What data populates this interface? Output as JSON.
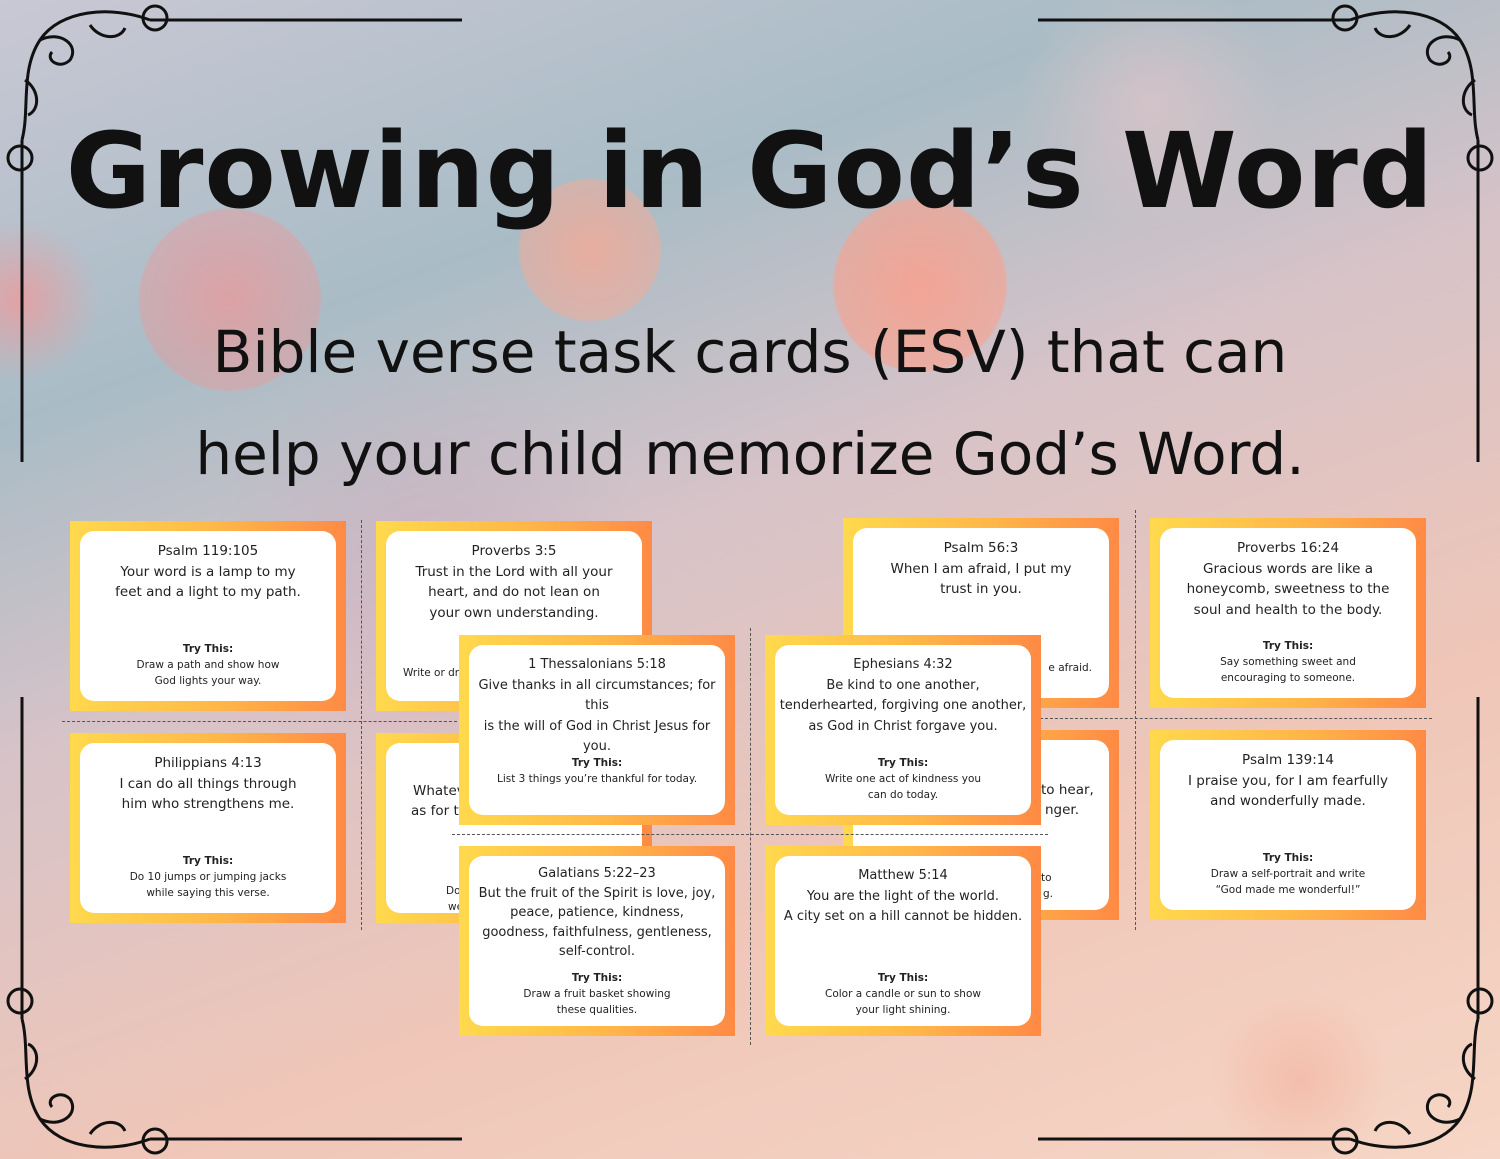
{
  "title": "Growing in God’s Word",
  "subtitle_line1": "Bible verse task cards (ESV) that can",
  "subtitle_line2": "help your child memorize God’s Word.",
  "accent_colors": {
    "card_gradient_start": "#ffd94d",
    "card_gradient_end": "#ff8a45"
  },
  "try_label": "Try This:",
  "cards": [
    {
      "ref": "Psalm 119:105",
      "verse": [
        "Your word is a lamp to my",
        "feet and a light to my path."
      ],
      "task": [
        "Draw a path and show how",
        "God lights your way."
      ]
    },
    {
      "ref": "Proverbs 3:5",
      "verse": [
        "Trust in the Lord with all your",
        "heart, and do not lean on",
        "your own understanding."
      ],
      "task_fragment": "Write or dra"
    },
    {
      "ref": "1 Thessalonians 5:18",
      "verse": [
        "Give thanks in all circumstances; for this",
        "is the will of God in Christ Jesus for you."
      ],
      "task": [
        "List 3 things you’re thankful for today."
      ]
    },
    {
      "ref": "Psalm 56:3",
      "verse": [
        "When I am afraid, I put my",
        "trust in you."
      ],
      "task_fragment": "e afraid."
    },
    {
      "ref": "Ephesians 4:32",
      "verse": [
        "Be kind to one another,",
        "tenderhearted, forgiving one another,",
        "as God in Christ forgave you."
      ],
      "task": [
        "Write one act of kindness you",
        "can do today."
      ]
    },
    {
      "ref": "Proverbs 16:24",
      "verse": [
        "Gracious words are like a",
        "honeycomb, sweetness to the",
        "soul and health to the body."
      ],
      "task": [
        "Say something sweet and",
        "encouraging to someone."
      ]
    },
    {
      "ref": "Philippians 4:13",
      "verse": [
        "I can do all things through",
        "him who strengthens me."
      ],
      "task": [
        "Do 10 jumps or jumping jacks",
        "while saying this verse."
      ]
    },
    {
      "fragments": [
        "Whatev",
        "as for th"
      ],
      "task_fragments": [
        "Do",
        "we"
      ]
    },
    {
      "fragments": [
        "to hear,",
        "nger."
      ],
      "task_fragments": [
        "to",
        "g."
      ]
    },
    {
      "ref": "Psalm 139:14",
      "verse": [
        "I praise you, for I am fearfully",
        "and wonderfully made."
      ],
      "task": [
        "Draw a self-portrait and write",
        "“God made me wonderful!”"
      ]
    },
    {
      "ref": "Galatians 5:22–23",
      "verse": [
        "But the fruit of the Spirit is love, joy,",
        "peace, patience, kindness,",
        "goodness, faithfulness, gentleness,",
        "self-control."
      ],
      "task": [
        "Draw a fruit basket showing",
        "these qualities."
      ]
    },
    {
      "ref": "Matthew 5:14",
      "verse": [
        "You are the light of the world.",
        "A city set on a hill cannot be hidden."
      ],
      "task": [
        "Color a candle or sun to show",
        "your light shining."
      ]
    }
  ]
}
